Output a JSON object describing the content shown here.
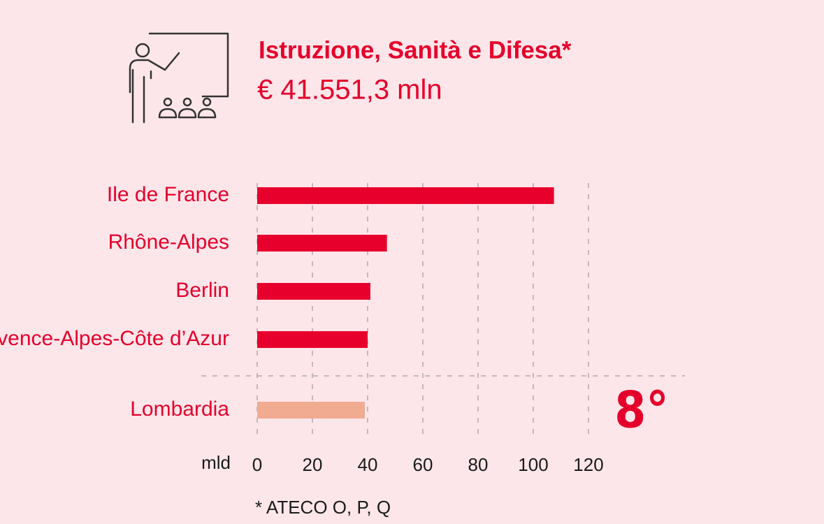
{
  "chart_data": {
    "type": "bar",
    "orientation": "horizontal",
    "title": "Istruzione, Sanità e Difesa*",
    "subtitle": "€ 41.551,3 mln",
    "categories": [
      "Ile de France",
      "Rhône-Alpes",
      "Berlin",
      "Provence-Alpes-Côte d’Azur",
      "Lombardia"
    ],
    "values": [
      107.5,
      47,
      41,
      40,
      39
    ],
    "colors": [
      "#e8002d",
      "#e8002d",
      "#e8002d",
      "#e8002d",
      "#f0ab90"
    ],
    "xlim": [
      0,
      120
    ],
    "xticks": [
      0,
      20,
      40,
      60,
      80,
      100,
      120
    ],
    "x_label": "mld",
    "grid": true,
    "annotation": "8°",
    "footnote": "* ATECO O, P, Q"
  }
}
